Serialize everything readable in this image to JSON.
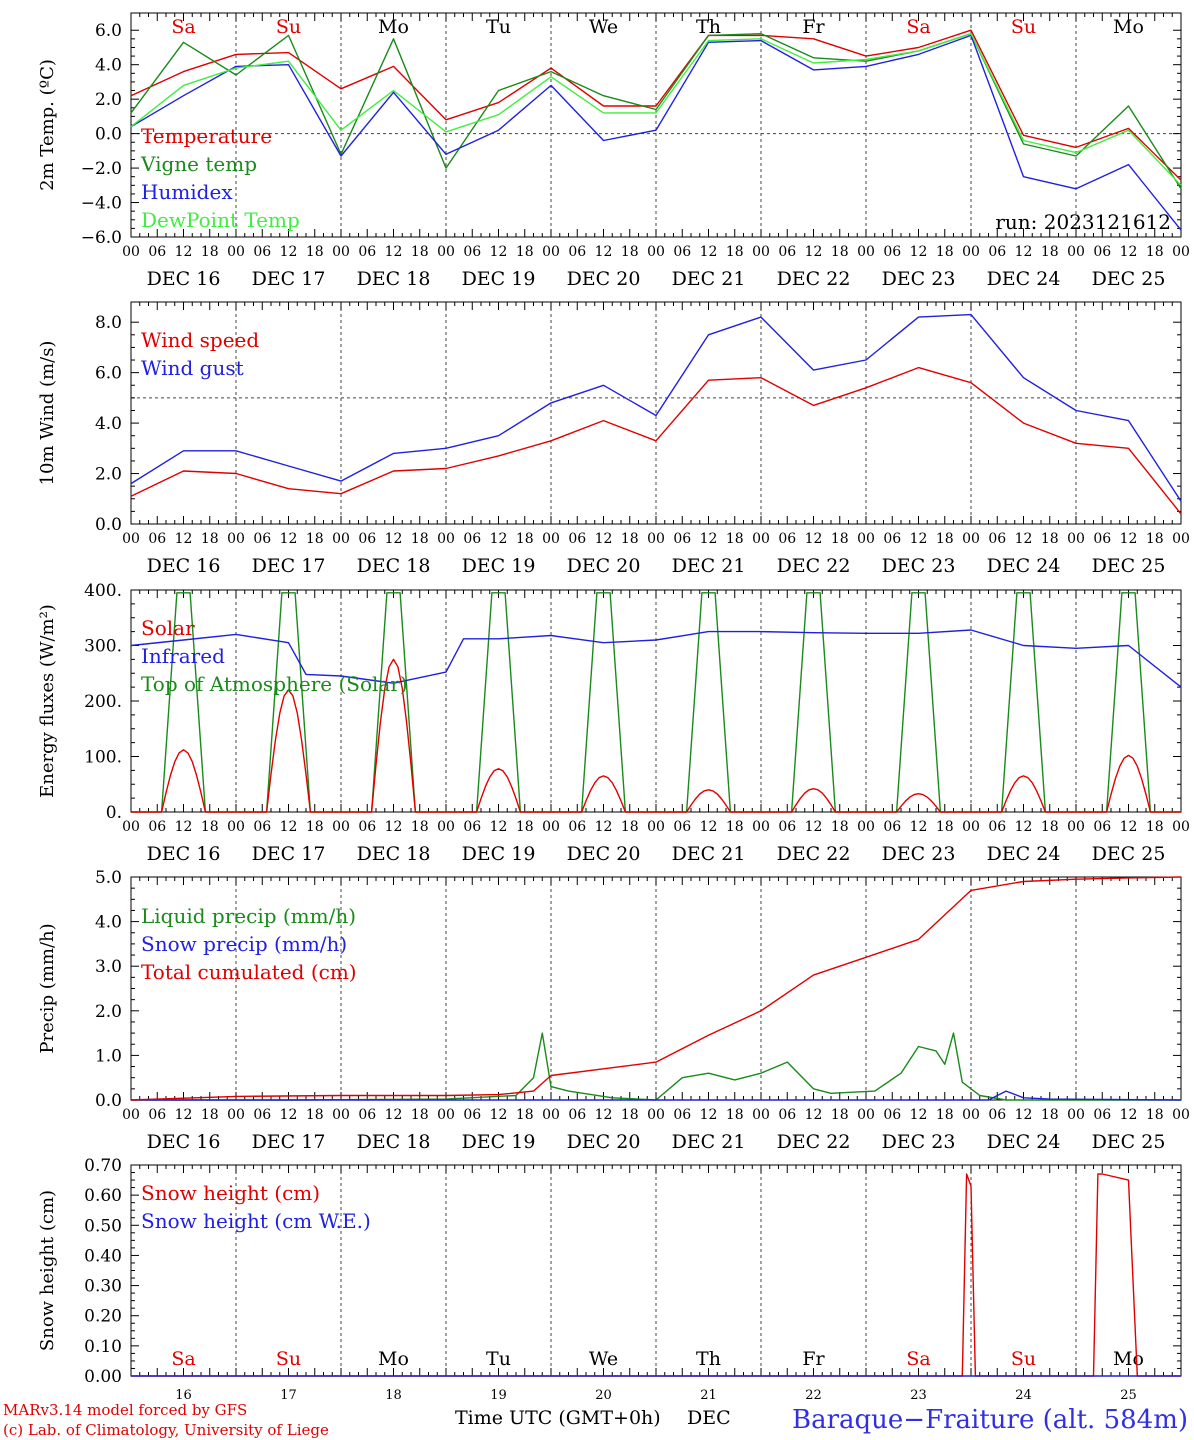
{
  "station": "Baraque−Fraiture (alt. 584m)",
  "run_label": "run: 2023121612",
  "credits": [
    "MARv3.14 model forced by GFS",
    "(c) Lab. of Climatology, University of Liege"
  ],
  "xaxis_label": "Time UTC (GMT+0h)",
  "month_label": "DEC",
  "weekdays": [
    "Sa",
    "Su",
    "Mo",
    "Tu",
    "We",
    "Th",
    "Fr",
    "Sa",
    "Su",
    "Mo"
  ],
  "weekday_colors": [
    "#e00000",
    "#e00000",
    "#000000",
    "#000000",
    "#000000",
    "#000000",
    "#000000",
    "#e00000",
    "#e00000",
    "#000000"
  ],
  "day_labels": [
    "DEC 16",
    "DEC 17",
    "DEC 18",
    "DEC 19",
    "DEC 20",
    "DEC 21",
    "DEC 22",
    "DEC 23",
    "DEC 24",
    "DEC 25"
  ],
  "day_numbers": [
    "16",
    "17",
    "18",
    "19",
    "20",
    "21",
    "22",
    "23",
    "24",
    "25"
  ],
  "hour_ticks": [
    "00",
    "06",
    "12",
    "18"
  ],
  "end_hour": "00",
  "chart_data": [
    {
      "type": "line",
      "ylabel": "2m Temp. (ºC)",
      "ylim": [
        -6,
        7
      ],
      "yticks": [
        -6,
        -4,
        -2,
        0,
        2,
        4,
        6
      ],
      "ytick_labels": [
        "−6.0",
        "−4.0",
        "−2.0",
        "0.0",
        "2.0",
        "4.0",
        "6.0"
      ],
      "ref_line": 0,
      "x_hours": [
        0,
        12,
        24,
        36,
        48,
        60,
        72,
        84,
        96,
        108,
        120,
        132,
        144,
        156,
        168,
        180,
        192,
        204,
        216,
        228,
        240
      ],
      "series": [
        {
          "name": "Temperature",
          "color": "#e00000",
          "values": [
            2.2,
            3.6,
            4.6,
            4.7,
            2.6,
            3.9,
            0.8,
            1.8,
            3.8,
            1.6,
            1.6,
            5.7,
            5.7,
            5.5,
            4.5,
            5.0,
            6.0,
            -0.1,
            -0.8,
            0.3,
            -2.7
          ]
        },
        {
          "name": "Vigne temp",
          "color": "#1a8a1a",
          "values": [
            1.2,
            5.3,
            3.4,
            5.7,
            -1.2,
            5.5,
            -2.0,
            2.5,
            3.6,
            2.2,
            1.4,
            5.7,
            5.8,
            4.4,
            4.2,
            4.8,
            5.8,
            -0.6,
            -1.3,
            1.6,
            -3.2
          ]
        },
        {
          "name": "Humidex",
          "color": "#2020e0",
          "values": [
            0.4,
            2.2,
            3.9,
            4.0,
            -1.3,
            2.4,
            -1.2,
            0.2,
            2.8,
            -0.4,
            0.2,
            5.3,
            5.4,
            3.7,
            3.9,
            4.6,
            5.7,
            -2.5,
            -3.2,
            -1.8,
            -5.6
          ]
        },
        {
          "name": "DewPoint Temp",
          "color": "#40ee40",
          "values": [
            0.4,
            2.8,
            3.8,
            4.2,
            0.2,
            2.5,
            0.1,
            1.1,
            3.3,
            1.2,
            1.2,
            5.4,
            5.5,
            4.1,
            4.3,
            4.8,
            5.8,
            -0.4,
            -1.1,
            0.2,
            -3.0
          ]
        }
      ]
    },
    {
      "type": "line",
      "ylabel": "10m Wind (m/s)",
      "ylim": [
        0,
        8.8
      ],
      "yticks": [
        0,
        2,
        4,
        6,
        8
      ],
      "ytick_labels": [
        "0.0",
        "2.0",
        "4.0",
        "6.0",
        "8.0"
      ],
      "ref_line": 5,
      "x_hours": [
        0,
        12,
        24,
        36,
        48,
        60,
        72,
        84,
        96,
        108,
        120,
        132,
        144,
        156,
        168,
        180,
        192,
        204,
        216,
        228,
        240
      ],
      "series": [
        {
          "name": "Wind speed",
          "color": "#e00000",
          "values": [
            1.1,
            2.1,
            2.0,
            1.4,
            1.2,
            2.1,
            2.2,
            2.7,
            3.3,
            4.1,
            3.3,
            5.7,
            5.8,
            4.7,
            5.4,
            6.2,
            5.6,
            4.0,
            3.2,
            3.0,
            0.4
          ]
        },
        {
          "name": "Wind gust",
          "color": "#2020e0",
          "values": [
            1.6,
            2.9,
            2.9,
            2.3,
            1.7,
            2.8,
            3.0,
            3.5,
            4.8,
            5.5,
            4.3,
            7.5,
            8.2,
            6.1,
            6.5,
            8.2,
            8.3,
            5.8,
            4.5,
            4.1,
            0.9
          ]
        }
      ]
    },
    {
      "type": "line",
      "ylabel": "Energy fluxes (W/m²)",
      "ylim": [
        0,
        400
      ],
      "yticks": [
        0,
        100,
        200,
        300,
        400
      ],
      "ytick_labels": [
        "0.",
        "100.",
        "200.",
        "300.",
        "400."
      ],
      "solar_peaks": [
        112,
        220,
        275,
        78,
        65,
        40,
        42,
        33,
        65,
        102
      ],
      "toa_peak": 395,
      "daylight_hours": [
        7,
        17
      ],
      "series": [
        {
          "name": "Solar",
          "color": "#e00000"
        },
        {
          "name": "Infrared",
          "color": "#2020e0",
          "x_hours": [
            0,
            12,
            24,
            36,
            40,
            48,
            60,
            72,
            76,
            84,
            96,
            108,
            120,
            132,
            144,
            156,
            168,
            180,
            192,
            204,
            216,
            228,
            240
          ],
          "values": [
            300,
            310,
            320,
            305,
            248,
            245,
            232,
            252,
            312,
            312,
            318,
            305,
            310,
            325,
            325,
            323,
            322,
            322,
            328,
            300,
            295,
            300,
            225
          ]
        },
        {
          "name": "Top of Atmosphere (Solar)",
          "color": "#1a8a1a"
        }
      ]
    },
    {
      "type": "line",
      "ylabel": "Precip (mm/h)",
      "ylim": [
        0,
        5
      ],
      "yticks": [
        0,
        1,
        2,
        3,
        4,
        5
      ],
      "ytick_labels": [
        "0.0",
        "1.0",
        "2.0",
        "3.0",
        "4.0",
        "5.0"
      ],
      "series": [
        {
          "name": "Liquid precip (mm/h)",
          "color": "#1a8a1a",
          "x_hours": [
            0,
            36,
            72,
            88,
            92,
            94,
            96,
            100,
            110,
            120,
            126,
            132,
            138,
            144,
            150,
            156,
            160,
            170,
            176,
            180,
            184,
            186,
            188,
            190,
            194,
            200,
            210,
            240
          ],
          "values": [
            0,
            0,
            0.02,
            0.1,
            0.5,
            1.5,
            0.3,
            0.2,
            0.05,
            0,
            0.5,
            0.6,
            0.45,
            0.6,
            0.85,
            0.25,
            0.15,
            0.2,
            0.6,
            1.2,
            1.1,
            0.8,
            1.5,
            0.4,
            0.1,
            0,
            0,
            0
          ]
        },
        {
          "name": "Snow precip (mm/h)",
          "color": "#2020e0",
          "x_hours": [
            0,
            196,
            200,
            204,
            210,
            240
          ],
          "values": [
            0,
            0,
            0.2,
            0.05,
            0.02,
            0
          ]
        },
        {
          "name": "Total cumulated (cm)",
          "color": "#e00000",
          "x_hours": [
            0,
            24,
            48,
            72,
            84,
            92,
            96,
            108,
            120,
            132,
            144,
            156,
            168,
            180,
            192,
            204,
            216,
            228,
            240
          ],
          "values": [
            0,
            0.08,
            0.1,
            0.1,
            0.12,
            0.2,
            0.55,
            0.7,
            0.85,
            1.45,
            2.0,
            2.8,
            3.2,
            3.6,
            4.7,
            4.9,
            4.95,
            4.98,
            5.0
          ]
        }
      ]
    },
    {
      "type": "line",
      "ylabel": "Snow height (cm)",
      "ylim": [
        0,
        0.7
      ],
      "yticks": [
        0,
        0.1,
        0.2,
        0.3,
        0.4,
        0.5,
        0.6,
        0.7
      ],
      "ytick_labels": [
        "0.00",
        "0.10",
        "0.20",
        "0.30",
        "0.40",
        "0.50",
        "0.60",
        "0.70"
      ],
      "series": [
        {
          "name": "Snow height (cm)",
          "color": "#e00000",
          "x_hours": [
            0,
            190,
            191,
            192,
            193,
            220,
            221,
            222,
            228,
            230,
            240
          ],
          "values": [
            0,
            0,
            0.67,
            0.63,
            0,
            0,
            0.67,
            0.67,
            0.65,
            0,
            0
          ]
        },
        {
          "name": "Snow height (cm W.E.)",
          "color": "#2020e0",
          "x_hours": [
            0,
            240
          ],
          "values": [
            0,
            0
          ]
        }
      ]
    }
  ]
}
